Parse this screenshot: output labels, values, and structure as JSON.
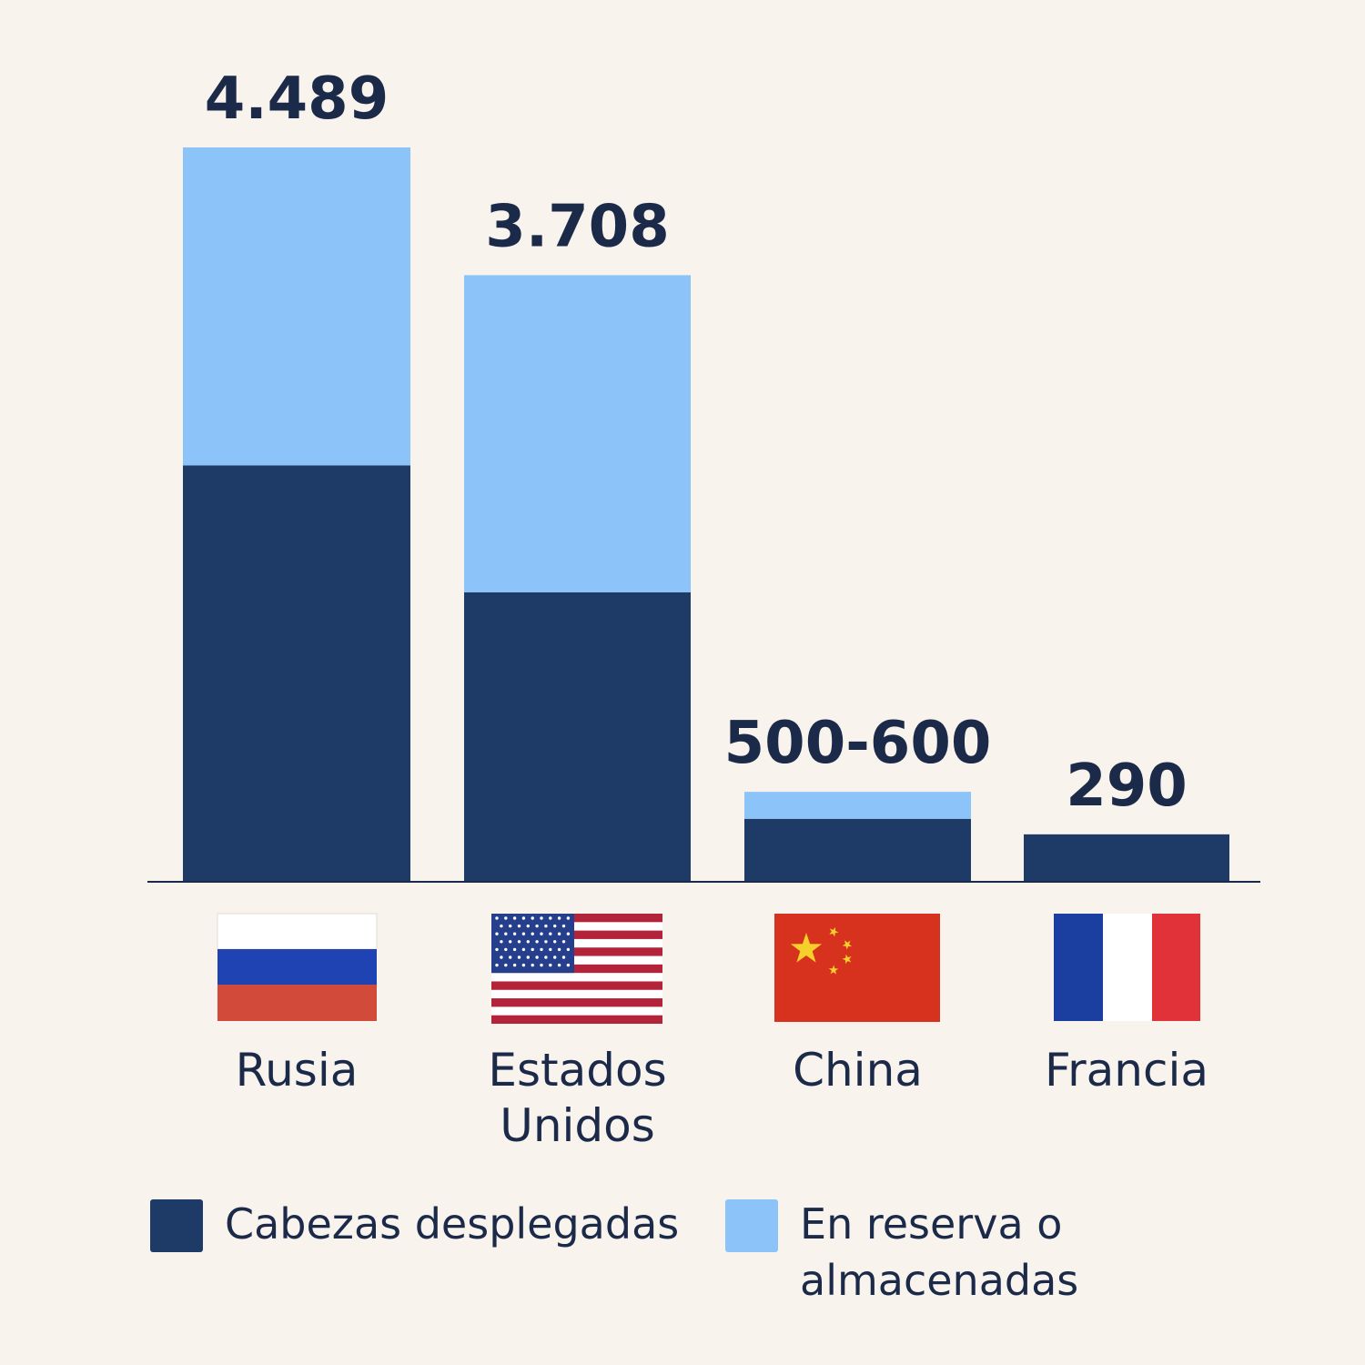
{
  "chart_data": {
    "type": "bar",
    "stacked": true,
    "categories": [
      "Rusia",
      "Estados Unidos",
      "China",
      "Francia"
    ],
    "series": [
      {
        "name": "Cabezas desplegadas",
        "color": "#1e3a66",
        "values": [
          2545,
          1770,
          385,
          290
        ]
      },
      {
        "name": "En reserva o almacenadas",
        "color": "#8cc4fa",
        "values": [
          1944,
          1938,
          165,
          0
        ]
      }
    ],
    "data_labels": [
      "4.489",
      "3.708",
      "500-600",
      "290"
    ],
    "ylim": [
      0,
      4489
    ],
    "grid": false,
    "legend_position": "bottom",
    "flags": [
      "russia-flag",
      "usa-flag",
      "china-flag",
      "france-flag"
    ]
  },
  "legend": {
    "deployed": "Cabezas desplegadas",
    "reserve": "En reserva o almacenadas"
  }
}
